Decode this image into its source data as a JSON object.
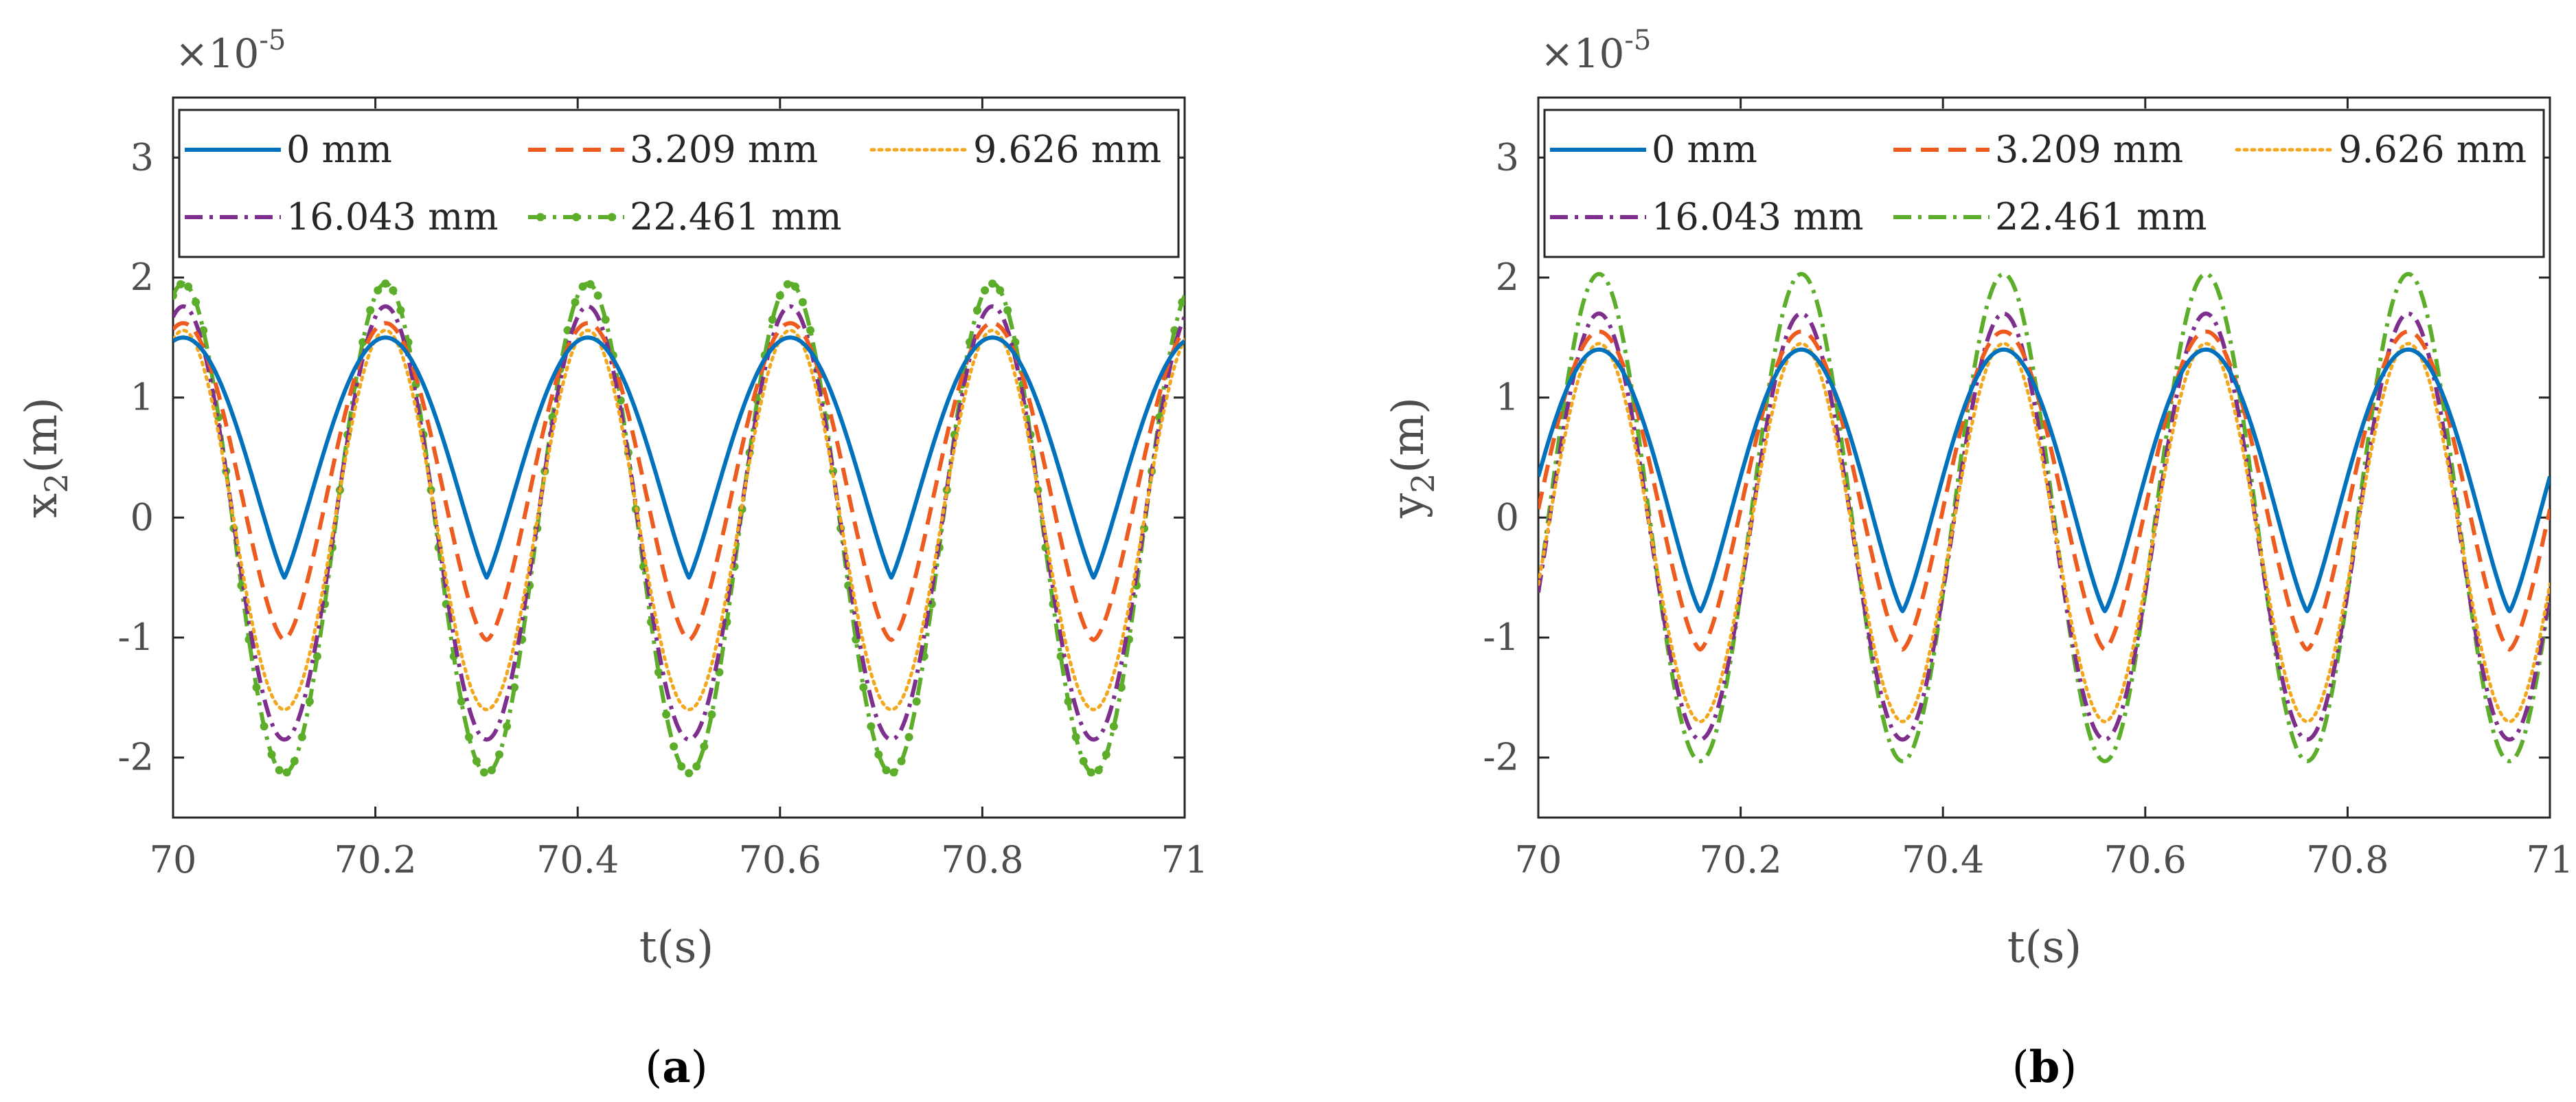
{
  "chart_data": [
    {
      "type": "line",
      "panel_label": "a",
      "xlabel": "t(s)",
      "ylabel": "x",
      "ylabel_subscript": "2",
      "ylabel_suffix": "(m)",
      "y_multiplier": "×10",
      "y_multiplier_exponent": "-5",
      "xlim": [
        70,
        71
      ],
      "ylim": [
        -2.5,
        3.5
      ],
      "x_ticks": [
        70,
        70.2,
        70.4,
        70.6,
        70.8,
        71
      ],
      "x_tick_labels": [
        "70",
        "70.2",
        "70.4",
        "70.6",
        "70.8",
        "71"
      ],
      "y_ticks": [
        -2,
        -1,
        0,
        1,
        2,
        3
      ],
      "y_tick_labels": [
        "-2",
        "-1",
        "0",
        "1",
        "2",
        "3"
      ],
      "period": 0.2,
      "peak_t": 70.01,
      "legend_position": "top",
      "series": [
        {
          "name": "0 mm",
          "color": "#0072BD",
          "dash": "solid",
          "peak": 1.5,
          "trough": -0.5,
          "sharpness": 1.7
        },
        {
          "name": "3.209 mm",
          "color": "#EE5B1E",
          "dash": "dashed",
          "peak": 1.62,
          "trough": -1.02,
          "sharpness": 1.25
        },
        {
          "name": "9.626 mm",
          "color": "#F2A71C",
          "dash": "dotted",
          "peak": 1.56,
          "trough": -1.6,
          "sharpness": 1.0
        },
        {
          "name": "16.043 mm",
          "color": "#7E2F8E",
          "dash": "dashdot",
          "peak": 1.76,
          "trough": -1.85,
          "sharpness": 1.0
        },
        {
          "name": "22.461 mm",
          "color": "#5BAD2A",
          "dash": "dashdot-marker",
          "peak": 1.95,
          "trough": -2.13,
          "sharpness": 1.0
        }
      ]
    },
    {
      "type": "line",
      "panel_label": "b",
      "xlabel": "t(s)",
      "ylabel": "y",
      "ylabel_subscript": "2",
      "ylabel_suffix": "(m)",
      "y_multiplier": "×10",
      "y_multiplier_exponent": "-5",
      "xlim": [
        70,
        71
      ],
      "ylim": [
        -2.5,
        3.5
      ],
      "x_ticks": [
        70,
        70.2,
        70.4,
        70.6,
        70.8,
        71
      ],
      "x_tick_labels": [
        "70",
        "70.2",
        "70.4",
        "70.6",
        "70.8",
        "71"
      ],
      "y_ticks": [
        -2,
        -1,
        0,
        1,
        2,
        3
      ],
      "y_tick_labels": [
        "-2",
        "-1",
        "0",
        "1",
        "2",
        "3"
      ],
      "period": 0.2,
      "peak_t": 70.06,
      "legend_position": "top",
      "series": [
        {
          "name": "0 mm",
          "color": "#0072BD",
          "dash": "solid",
          "peak": 1.4,
          "trough": -0.78,
          "sharpness": 1.6
        },
        {
          "name": "3.209 mm",
          "color": "#EE5B1E",
          "dash": "dashed",
          "peak": 1.55,
          "trough": -1.1,
          "sharpness": 1.3
        },
        {
          "name": "9.626 mm",
          "color": "#F2A71C",
          "dash": "dotted",
          "peak": 1.45,
          "trough": -1.7,
          "sharpness": 1.05
        },
        {
          "name": "16.043 mm",
          "color": "#7E2F8E",
          "dash": "dashdot",
          "peak": 1.7,
          "trough": -1.85,
          "sharpness": 1.0
        },
        {
          "name": "22.461 mm",
          "color": "#5BAD2A",
          "dash": "dashdot",
          "peak": 2.03,
          "trough": -2.03,
          "sharpness": 1.0
        }
      ]
    }
  ]
}
